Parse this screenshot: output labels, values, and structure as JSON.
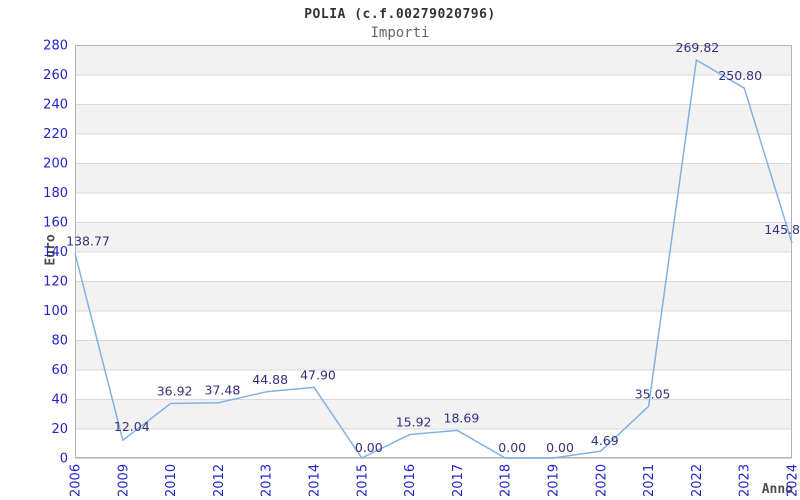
{
  "header": {
    "title": "POLIA (c.f.00279020796)",
    "subtitle": "Importi"
  },
  "axes": {
    "y_title": "Euro",
    "x_title": "Anno"
  },
  "colors": {
    "tick_label": "#2323cc",
    "point_label": "#32327d",
    "line": "#82b2e4",
    "stripe": "#f2f2f2",
    "grid": "#d9d9d9",
    "border": "#b3b3b3",
    "title": "#333333",
    "subtitle": "#666666",
    "axis_title": "#4d4d4d"
  },
  "chart_data": {
    "type": "line",
    "title": "POLIA (c.f.00279020796)",
    "subtitle": "Importi",
    "xlabel": "Anno",
    "ylabel": "Euro",
    "categories": [
      "2006",
      "2009",
      "2010",
      "2012",
      "2013",
      "2014",
      "2015",
      "2016",
      "2017",
      "2018",
      "2019",
      "2020",
      "2021",
      "2022",
      "2023",
      "2024"
    ],
    "values": [
      138.77,
      12.04,
      36.92,
      37.48,
      44.88,
      47.9,
      0.0,
      15.92,
      18.69,
      0.0,
      0.0,
      4.69,
      35.05,
      269.82,
      250.8,
      145.8
    ],
    "point_labels": [
      "138.77",
      "12.04",
      "36.92",
      "37.48",
      "44.88",
      "47.90",
      "0.00",
      "15.92",
      "18.69",
      "0.00",
      "0.00",
      "4.69",
      "35.05",
      "269.82",
      "250.80",
      "145.8"
    ],
    "ylim": [
      0,
      280
    ],
    "y_tick_step": 20,
    "grid": "horizontal gridlines with alternating gray bands",
    "legend": "none",
    "series_color": "#82b2e4"
  }
}
